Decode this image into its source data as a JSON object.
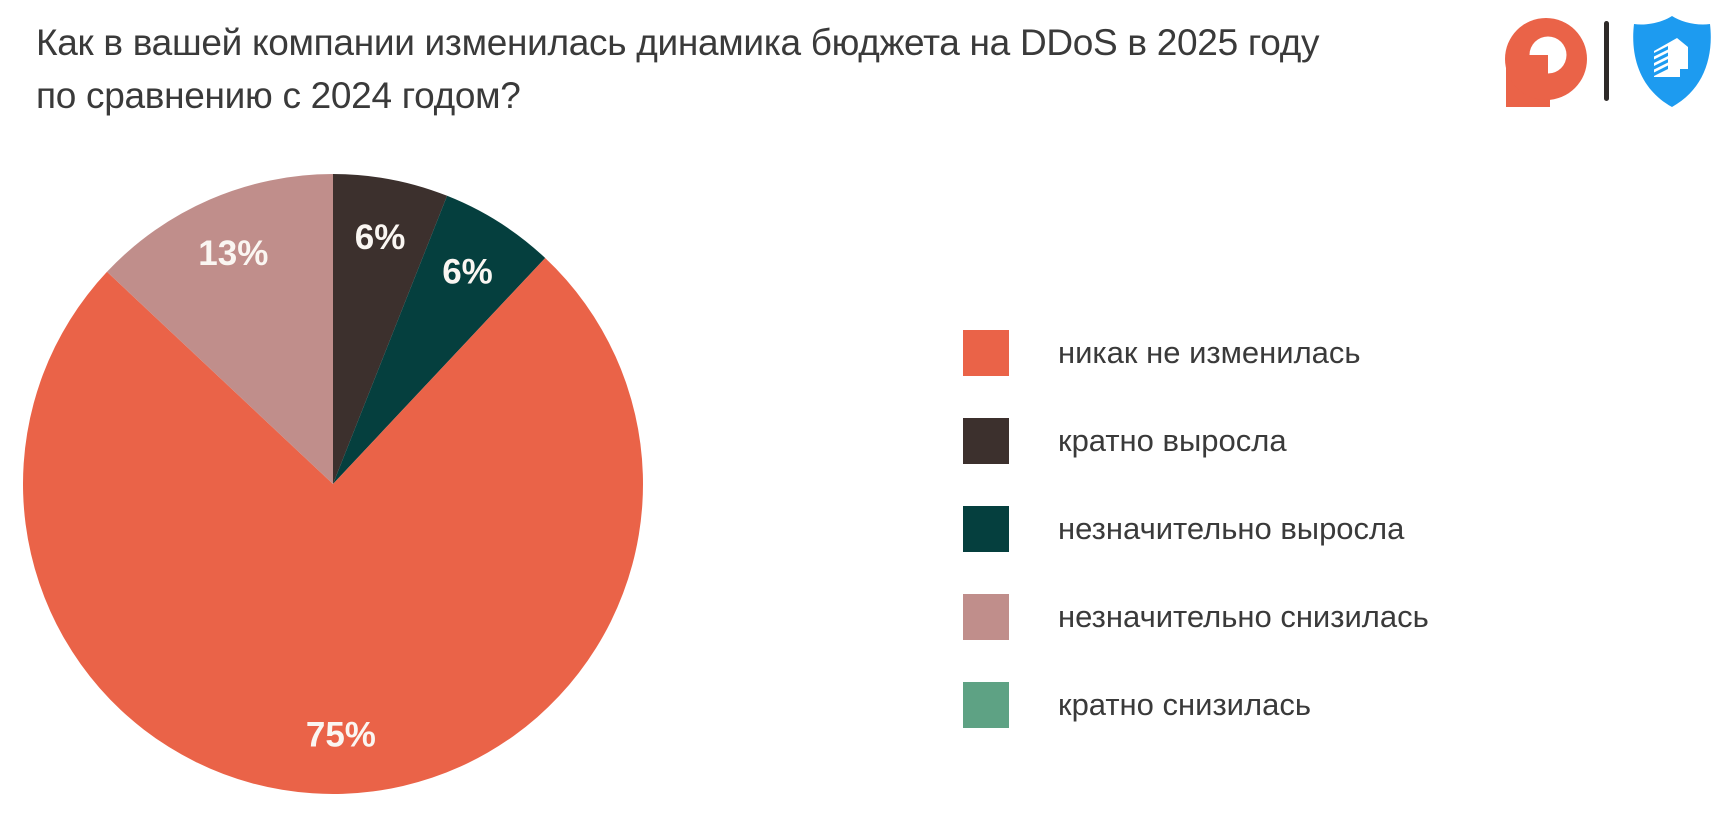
{
  "header": {
    "title_line1": "Как в вашей компании изменилась динамика бюджета на DDoS в 2025 году",
    "title_line2": "по сравнению с 2024 годом?",
    "brand": {
      "lock_logo_color": "#EA6348",
      "shield_logo_color": "#1D9BF0",
      "divider_color": "#2E2A28"
    }
  },
  "chart_data": {
    "type": "pie",
    "title": "Как в вашей компании изменилась динамика бюджета на DDoS в 2025 году по сравнению с 2024 годом?",
    "unit": "%",
    "direction": "clockwise",
    "start_angle_deg_from_top": 0,
    "legend_position": "right",
    "data_label_color": "#FAF6F2",
    "pie_order": [
      "кратно выросла",
      "незначительно выросла",
      "никак не изменилась",
      "незначительно снизилась"
    ],
    "segments": [
      {
        "key": "unchanged",
        "label": "никак не изменилась",
        "value": 75,
        "color": "#EA6348",
        "data_label": "75%"
      },
      {
        "key": "grew-multifold",
        "label": "кратно выросла",
        "value": 6,
        "color": "#3C302D",
        "data_label": "6%"
      },
      {
        "key": "grew-slightly",
        "label": "незначительно выросла",
        "value": 6,
        "color": "#053F3E",
        "data_label": "6%"
      },
      {
        "key": "decreased-slightly",
        "label": "незначительно снизилась",
        "value": 13,
        "color": "#C08E8B",
        "data_label": "13%"
      },
      {
        "key": "decreased-multifold",
        "label": "кратно снизилась",
        "value": 0,
        "color": "#5EA284",
        "data_label": null
      }
    ]
  }
}
